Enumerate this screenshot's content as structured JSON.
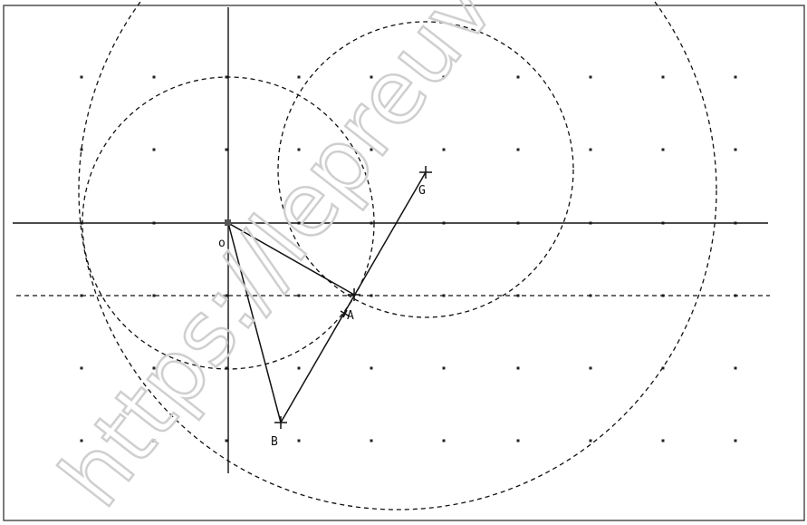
{
  "points": {
    "O": {
      "label": "o"
    },
    "A": {
      "label": "A"
    },
    "B": {
      "label": "B"
    },
    "G": {
      "label": "G"
    }
  },
  "watermark": "https://lepreuv",
  "colors": {
    "ink": "#111111",
    "frame": "#444444",
    "watermark": "#cfcfcf",
    "background": "#ffffff"
  }
}
